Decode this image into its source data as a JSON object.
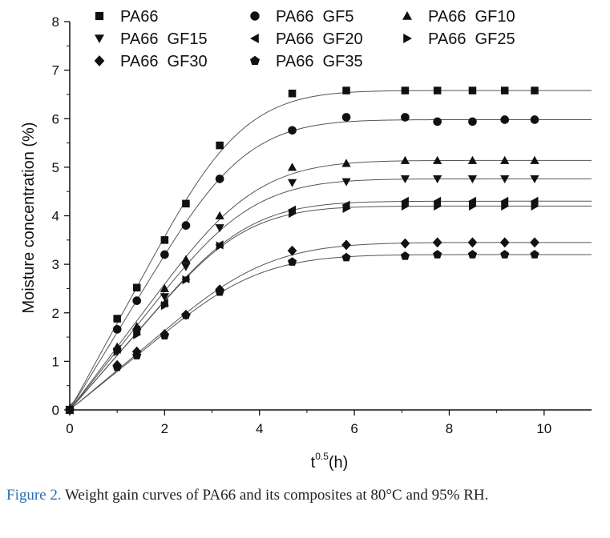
{
  "chart_data": {
    "type": "scatter",
    "xlabel_main": "t",
    "xlabel_sup": "0.5",
    "xlabel_unit": "(h)",
    "ylabel": "Moisture concentration (%)",
    "xlim": [
      0,
      11
    ],
    "ylim": [
      0,
      8
    ],
    "xticks": [
      0,
      2,
      4,
      6,
      8,
      10
    ],
    "yticks": [
      0,
      1,
      2,
      3,
      4,
      5,
      6,
      7,
      8
    ],
    "grid": false,
    "legend_position": "top",
    "x": [
      0,
      1,
      1.414,
      2,
      2.449,
      3.162,
      4.69,
      5.83,
      7.07,
      7.75,
      8.49,
      9.17,
      9.8
    ],
    "series": [
      {
        "name": "PA66",
        "marker": "square",
        "plateau": 6.58,
        "values": [
          0,
          1.88,
          2.52,
          3.5,
          4.25,
          5.45,
          6.52,
          6.58,
          6.58,
          6.58,
          6.58,
          6.58,
          6.58
        ]
      },
      {
        "name": "PA66  GF5",
        "marker": "circle",
        "plateau": 5.98,
        "values": [
          0,
          1.66,
          2.25,
          3.2,
          3.8,
          4.76,
          5.76,
          6.03,
          6.03,
          5.94,
          5.94,
          5.98,
          5.98
        ]
      },
      {
        "name": "PA66  GF10",
        "marker": "triangle-up",
        "plateau": 5.14,
        "values": [
          0,
          1.3,
          1.72,
          2.5,
          3.1,
          4.0,
          5.0,
          5.08,
          5.14,
          5.14,
          5.14,
          5.14,
          5.14
        ]
      },
      {
        "name": "PA66  GF15",
        "marker": "triangle-down",
        "plateau": 4.76,
        "values": [
          0,
          1.2,
          1.6,
          2.33,
          2.95,
          3.75,
          4.68,
          4.7,
          4.76,
          4.76,
          4.76,
          4.76,
          4.76
        ]
      },
      {
        "name": "PA66  GF20",
        "marker": "triangle-left",
        "plateau": 4.3,
        "values": [
          0,
          1.25,
          1.65,
          2.2,
          2.7,
          3.4,
          4.12,
          4.22,
          4.3,
          4.3,
          4.3,
          4.3,
          4.3
        ]
      },
      {
        "name": "PA66  GF25",
        "marker": "triangle-right",
        "plateau": 4.2,
        "values": [
          0,
          1.2,
          1.55,
          2.15,
          2.68,
          3.38,
          4.05,
          4.15,
          4.2,
          4.2,
          4.2,
          4.2,
          4.2
        ]
      },
      {
        "name": "PA66  GF30",
        "marker": "diamond",
        "plateau": 3.45,
        "values": [
          0,
          0.92,
          1.2,
          1.56,
          1.96,
          2.48,
          3.28,
          3.4,
          3.43,
          3.45,
          3.45,
          3.45,
          3.45
        ]
      },
      {
        "name": "PA66  GF35",
        "marker": "pentagon",
        "plateau": 3.2,
        "values": [
          0,
          0.88,
          1.12,
          1.53,
          1.95,
          2.43,
          3.05,
          3.14,
          3.17,
          3.2,
          3.2,
          3.2,
          3.2
        ]
      }
    ]
  },
  "caption": {
    "label": "Figure 2.",
    "text": " Weight gain curves of PA66 and its composites at 80°C and 95% RH."
  }
}
